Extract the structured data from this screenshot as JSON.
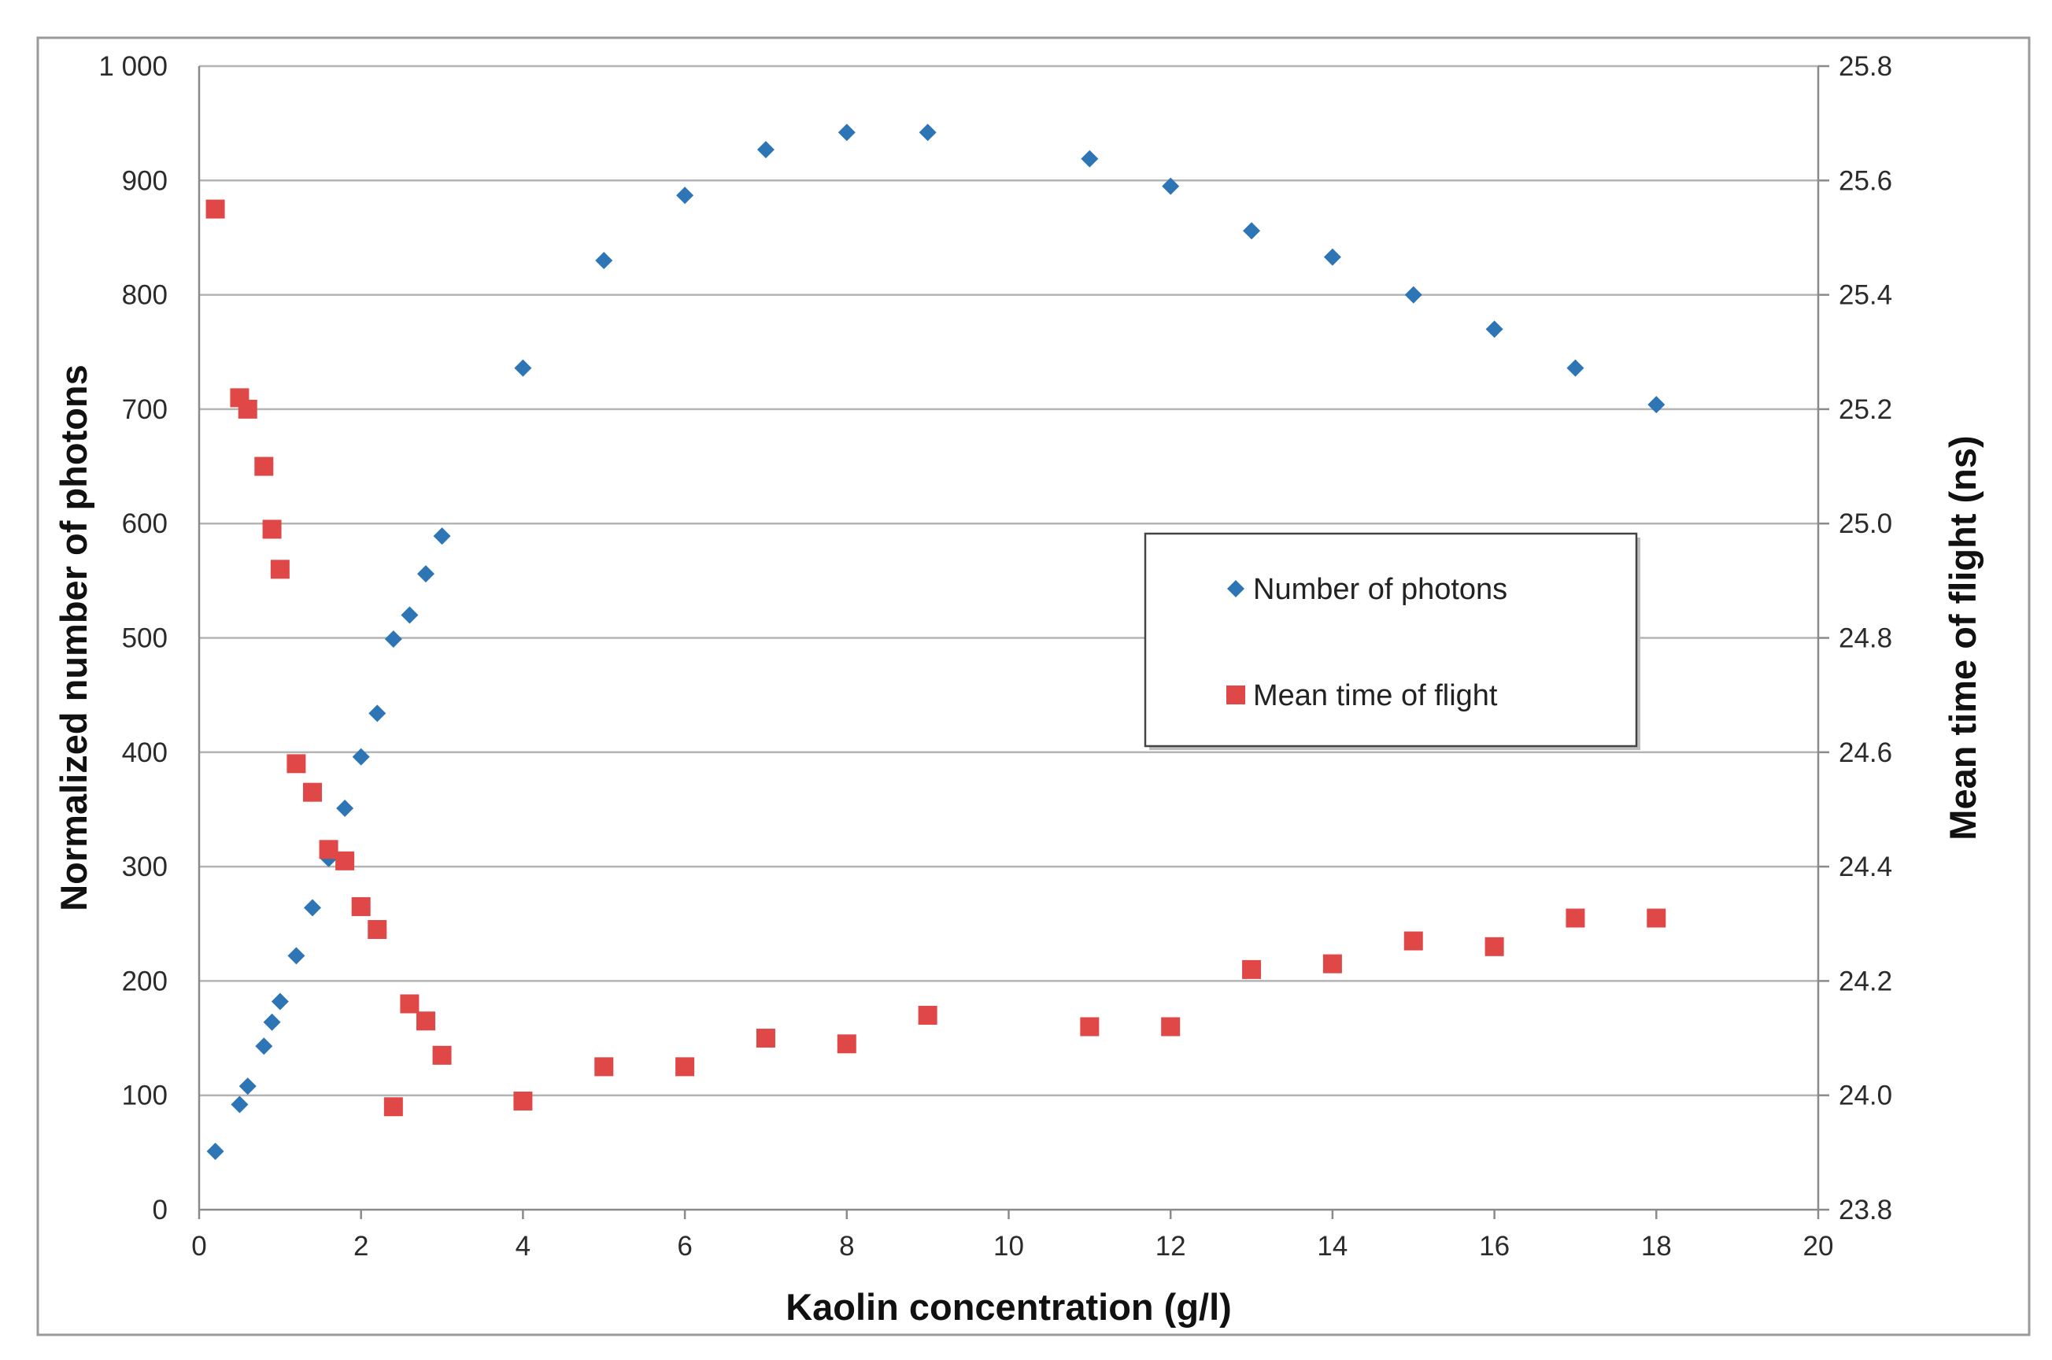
{
  "chart_data": {
    "type": "scatter",
    "title": "",
    "xlabel": "Kaolin concentration (g/l)",
    "ylabel": "Normalized number of photons",
    "y2label": "Mean time of flight (ns)",
    "xlim": [
      0,
      20
    ],
    "ylim": [
      0,
      1000
    ],
    "y2lim": [
      23.8,
      25.8
    ],
    "x_ticks": [
      "0",
      "2",
      "4",
      "6",
      "8",
      "10",
      "12",
      "14",
      "16",
      "18",
      "20"
    ],
    "y_ticks": [
      "0",
      "100",
      "200",
      "300",
      "400",
      "500",
      "600",
      "700",
      "800",
      "900",
      "1 000"
    ],
    "y2_ticks": [
      "23.8",
      "24.0",
      "24.2",
      "24.4",
      "24.6",
      "24.8",
      "25.0",
      "25.2",
      "25.4",
      "25.6",
      "25.8"
    ],
    "grid": true,
    "legend_position": "center-right",
    "series": [
      {
        "name": "Number of photons",
        "axis": "left",
        "marker": "diamond",
        "color": "#2e75b6",
        "points": [
          {
            "x": 0.2,
            "y": 51
          },
          {
            "x": 0.5,
            "y": 92
          },
          {
            "x": 0.6,
            "y": 108
          },
          {
            "x": 0.8,
            "y": 143
          },
          {
            "x": 0.9,
            "y": 164
          },
          {
            "x": 1.0,
            "y": 182
          },
          {
            "x": 1.2,
            "y": 222
          },
          {
            "x": 1.4,
            "y": 264
          },
          {
            "x": 1.6,
            "y": 307
          },
          {
            "x": 1.8,
            "y": 351
          },
          {
            "x": 2.0,
            "y": 396
          },
          {
            "x": 2.2,
            "y": 434
          },
          {
            "x": 2.4,
            "y": 499
          },
          {
            "x": 2.6,
            "y": 520
          },
          {
            "x": 2.8,
            "y": 556
          },
          {
            "x": 3.0,
            "y": 589
          },
          {
            "x": 4.0,
            "y": 736
          },
          {
            "x": 5.0,
            "y": 830
          },
          {
            "x": 6.0,
            "y": 887
          },
          {
            "x": 7.0,
            "y": 927
          },
          {
            "x": 8.0,
            "y": 942
          },
          {
            "x": 9.0,
            "y": 942
          },
          {
            "x": 11.0,
            "y": 919
          },
          {
            "x": 12.0,
            "y": 895
          },
          {
            "x": 13.0,
            "y": 856
          },
          {
            "x": 14.0,
            "y": 833
          },
          {
            "x": 15.0,
            "y": 800
          },
          {
            "x": 16.0,
            "y": 770
          },
          {
            "x": 17.0,
            "y": 736
          },
          {
            "x": 18.0,
            "y": 704
          }
        ]
      },
      {
        "name": "Mean time of flight",
        "axis": "right",
        "marker": "square",
        "color": "#e04848",
        "points": [
          {
            "x": 0.2,
            "y": 25.55
          },
          {
            "x": 0.5,
            "y": 25.22
          },
          {
            "x": 0.6,
            "y": 25.2
          },
          {
            "x": 0.8,
            "y": 25.1
          },
          {
            "x": 0.9,
            "y": 24.99
          },
          {
            "x": 1.0,
            "y": 24.92
          },
          {
            "x": 1.2,
            "y": 24.58
          },
          {
            "x": 1.4,
            "y": 24.53
          },
          {
            "x": 1.6,
            "y": 24.43
          },
          {
            "x": 1.8,
            "y": 24.41
          },
          {
            "x": 2.0,
            "y": 24.33
          },
          {
            "x": 2.2,
            "y": 24.29
          },
          {
            "x": 2.4,
            "y": 23.98
          },
          {
            "x": 2.6,
            "y": 24.16
          },
          {
            "x": 2.8,
            "y": 24.13
          },
          {
            "x": 3.0,
            "y": 24.07
          },
          {
            "x": 4.0,
            "y": 23.99
          },
          {
            "x": 5.0,
            "y": 24.05
          },
          {
            "x": 6.0,
            "y": 24.05
          },
          {
            "x": 7.0,
            "y": 24.1
          },
          {
            "x": 8.0,
            "y": 24.09
          },
          {
            "x": 9.0,
            "y": 24.14
          },
          {
            "x": 11.0,
            "y": 24.12
          },
          {
            "x": 12.0,
            "y": 24.12
          },
          {
            "x": 13.0,
            "y": 24.22
          },
          {
            "x": 14.0,
            "y": 24.23
          },
          {
            "x": 15.0,
            "y": 24.27
          },
          {
            "x": 16.0,
            "y": 24.26
          },
          {
            "x": 17.0,
            "y": 24.31
          },
          {
            "x": 18.0,
            "y": 24.31
          }
        ]
      }
    ]
  }
}
